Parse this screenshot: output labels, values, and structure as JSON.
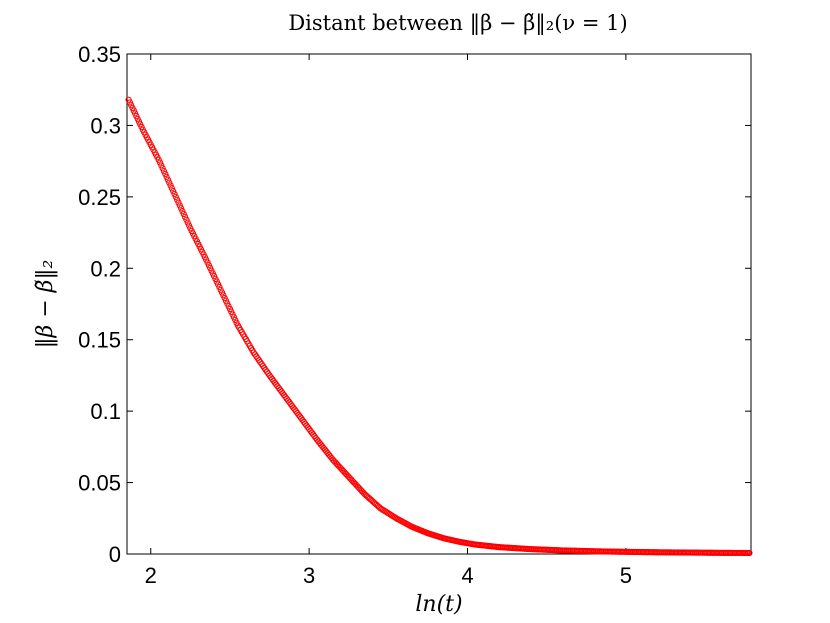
{
  "chart_data": {
    "type": "scatter",
    "title": "Distant between ‖β − β̃‖₂(ν = 1)",
    "xlabel": "ln(t)",
    "ylabel": "‖β − β̃‖₂",
    "xlim": [
      1.85,
      5.79
    ],
    "ylim": [
      0,
      0.35
    ],
    "xticks": [
      "2",
      "3",
      "4",
      "5"
    ],
    "yticks": [
      "0",
      "0.05",
      "0.1",
      "0.15",
      "0.2",
      "0.25",
      "0.3",
      "0.35"
    ],
    "grid": false,
    "marker": "open-circle",
    "color": "#ff0000",
    "series": [
      {
        "x": [
          1.86,
          1.95,
          2.05,
          2.15,
          2.25,
          2.35,
          2.45,
          2.55,
          2.65,
          2.75,
          2.85,
          2.95,
          3.05,
          3.15,
          3.25,
          3.35,
          3.45,
          3.55,
          3.65,
          3.75,
          3.85,
          3.95,
          4.05,
          4.2,
          4.4,
          4.6,
          4.8,
          5.0,
          5.2,
          5.4,
          5.6,
          5.78
        ],
        "y": [
          0.318,
          0.297,
          0.276,
          0.252,
          0.228,
          0.206,
          0.183,
          0.16,
          0.141,
          0.125,
          0.11,
          0.095,
          0.08,
          0.066,
          0.054,
          0.042,
          0.032,
          0.025,
          0.019,
          0.0145,
          0.011,
          0.0085,
          0.0066,
          0.0048,
          0.0034,
          0.0025,
          0.0019,
          0.0015,
          0.0012,
          0.001,
          0.0008,
          0.0007
        ]
      }
    ]
  }
}
